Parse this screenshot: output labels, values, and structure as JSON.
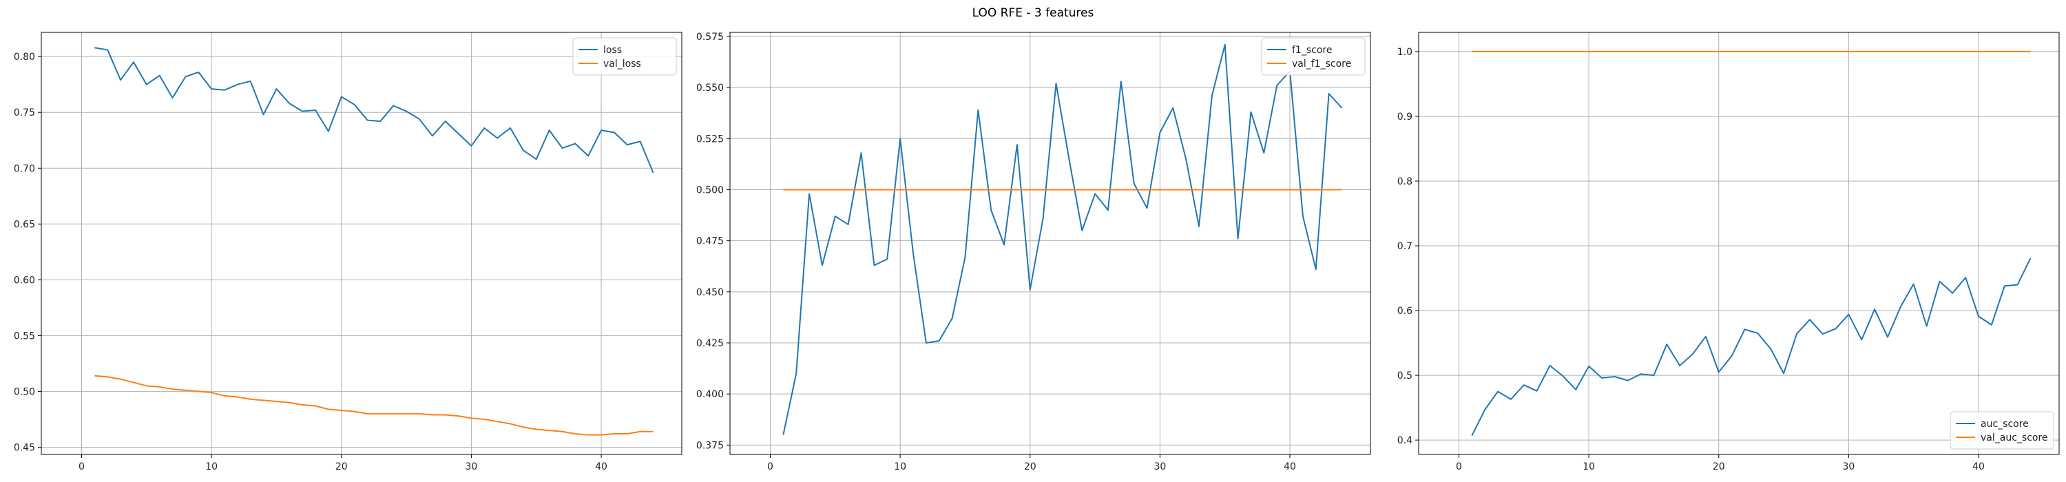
{
  "figure_title": "LOO RFE - 3 features",
  "colors": {
    "series1": "#1f77b4",
    "series2": "#ff7f0e",
    "grid": "#b0b0b0",
    "axis": "#000000"
  },
  "chart_data": [
    {
      "type": "line",
      "grid": true,
      "legend_position": "upper right",
      "xlim": [
        -3.1,
        46.2
      ],
      "ylim": [
        0.4435,
        0.8217
      ],
      "xticks": [
        0,
        10,
        20,
        30,
        40
      ],
      "yticks": [
        0.45,
        0.5,
        0.55,
        0.6,
        0.65,
        0.7,
        0.75,
        0.8
      ],
      "x": [
        1,
        2,
        3,
        4,
        5,
        6,
        7,
        8,
        9,
        10,
        11,
        12,
        13,
        14,
        15,
        16,
        17,
        18,
        19,
        20,
        21,
        22,
        23,
        24,
        25,
        26,
        27,
        28,
        29,
        30,
        31,
        32,
        33,
        34,
        35,
        36,
        37,
        38,
        39,
        40,
        41,
        42,
        43,
        44
      ],
      "series": [
        {
          "name": "loss",
          "color": "#1f77b4",
          "values": [
            0.808,
            0.806,
            0.779,
            0.795,
            0.775,
            0.783,
            0.763,
            0.782,
            0.786,
            0.771,
            0.77,
            0.775,
            0.778,
            0.748,
            0.771,
            0.758,
            0.751,
            0.752,
            0.733,
            0.764,
            0.757,
            0.743,
            0.742,
            0.756,
            0.751,
            0.744,
            0.729,
            0.742,
            0.731,
            0.72,
            0.736,
            0.727,
            0.736,
            0.716,
            0.708,
            0.734,
            0.718,
            0.722,
            0.711,
            0.734,
            0.732,
            0.721,
            0.724,
            0.696
          ]
        },
        {
          "name": "val_loss",
          "color": "#ff7f0e",
          "values": [
            0.514,
            0.513,
            0.511,
            0.508,
            0.505,
            0.504,
            0.502,
            0.501,
            0.5,
            0.499,
            0.496,
            0.495,
            0.493,
            0.492,
            0.491,
            0.49,
            0.488,
            0.487,
            0.484,
            0.483,
            0.482,
            0.48,
            0.48,
            0.48,
            0.48,
            0.48,
            0.479,
            0.479,
            0.478,
            0.476,
            0.475,
            0.473,
            0.471,
            0.468,
            0.466,
            0.465,
            0.464,
            0.462,
            0.461,
            0.461,
            0.462,
            0.462,
            0.464,
            0.464
          ]
        }
      ]
    },
    {
      "type": "line",
      "grid": true,
      "legend_position": "upper right",
      "xlim": [
        -3.1,
        46.2
      ],
      "ylim": [
        0.3704,
        0.577
      ],
      "xticks": [
        0,
        10,
        20,
        30,
        40
      ],
      "yticks": [
        0.375,
        0.4,
        0.425,
        0.45,
        0.475,
        0.5,
        0.525,
        0.55,
        0.575
      ],
      "x": [
        1,
        2,
        3,
        4,
        5,
        6,
        7,
        8,
        9,
        10,
        11,
        12,
        13,
        14,
        15,
        16,
        17,
        18,
        19,
        20,
        21,
        22,
        23,
        24,
        25,
        26,
        27,
        28,
        29,
        30,
        31,
        32,
        33,
        34,
        35,
        36,
        37,
        38,
        39,
        40,
        41,
        42,
        43,
        44
      ],
      "series": [
        {
          "name": "f1_score",
          "color": "#1f77b4",
          "values": [
            0.38,
            0.41,
            0.498,
            0.463,
            0.487,
            0.483,
            0.518,
            0.463,
            0.466,
            0.525,
            0.469,
            0.425,
            0.426,
            0.437,
            0.467,
            0.539,
            0.49,
            0.473,
            0.522,
            0.451,
            0.486,
            0.552,
            0.515,
            0.48,
            0.498,
            0.49,
            0.553,
            0.503,
            0.491,
            0.528,
            0.54,
            0.515,
            0.482,
            0.546,
            0.571,
            0.476,
            0.538,
            0.518,
            0.551,
            0.558,
            0.487,
            0.461,
            0.547,
            0.54
          ]
        },
        {
          "name": "val_f1_score",
          "color": "#ff7f0e",
          "values": [
            0.5,
            0.5,
            0.5,
            0.5,
            0.5,
            0.5,
            0.5,
            0.5,
            0.5,
            0.5,
            0.5,
            0.5,
            0.5,
            0.5,
            0.5,
            0.5,
            0.5,
            0.5,
            0.5,
            0.5,
            0.5,
            0.5,
            0.5,
            0.5,
            0.5,
            0.5,
            0.5,
            0.5,
            0.5,
            0.5,
            0.5,
            0.5,
            0.5,
            0.5,
            0.5,
            0.5,
            0.5,
            0.5,
            0.5,
            0.5,
            0.5,
            0.5,
            0.5,
            0.5
          ]
        }
      ]
    },
    {
      "type": "line",
      "grid": true,
      "legend_position": "lower right",
      "xlim": [
        -3.1,
        46.2
      ],
      "ylim": [
        0.3778,
        1.0297
      ],
      "xticks": [
        0,
        10,
        20,
        30,
        40
      ],
      "yticks": [
        0.4,
        0.5,
        0.6,
        0.7,
        0.8,
        0.9,
        1.0
      ],
      "x": [
        1,
        2,
        3,
        4,
        5,
        6,
        7,
        8,
        9,
        10,
        11,
        12,
        13,
        14,
        15,
        16,
        17,
        18,
        19,
        20,
        21,
        22,
        23,
        24,
        25,
        26,
        27,
        28,
        29,
        30,
        31,
        32,
        33,
        34,
        35,
        36,
        37,
        38,
        39,
        40,
        41,
        42,
        43,
        44
      ],
      "series": [
        {
          "name": "auc_score",
          "color": "#1f77b4",
          "values": [
            0.407,
            0.447,
            0.475,
            0.463,
            0.485,
            0.476,
            0.515,
            0.499,
            0.478,
            0.514,
            0.496,
            0.498,
            0.492,
            0.502,
            0.5,
            0.548,
            0.515,
            0.533,
            0.56,
            0.505,
            0.53,
            0.571,
            0.565,
            0.541,
            0.503,
            0.564,
            0.586,
            0.564,
            0.572,
            0.594,
            0.555,
            0.602,
            0.559,
            0.606,
            0.641,
            0.576,
            0.645,
            0.627,
            0.651,
            0.591,
            0.578,
            0.638,
            0.64,
            0.681
          ]
        },
        {
          "name": "val_auc_score",
          "color": "#ff7f0e",
          "values": [
            1.0,
            1.0,
            1.0,
            1.0,
            1.0,
            1.0,
            1.0,
            1.0,
            1.0,
            1.0,
            1.0,
            1.0,
            1.0,
            1.0,
            1.0,
            1.0,
            1.0,
            1.0,
            1.0,
            1.0,
            1.0,
            1.0,
            1.0,
            1.0,
            1.0,
            1.0,
            1.0,
            1.0,
            1.0,
            1.0,
            1.0,
            1.0,
            1.0,
            1.0,
            1.0,
            1.0,
            1.0,
            1.0,
            1.0,
            1.0,
            1.0,
            1.0,
            1.0,
            1.0
          ]
        }
      ]
    }
  ]
}
